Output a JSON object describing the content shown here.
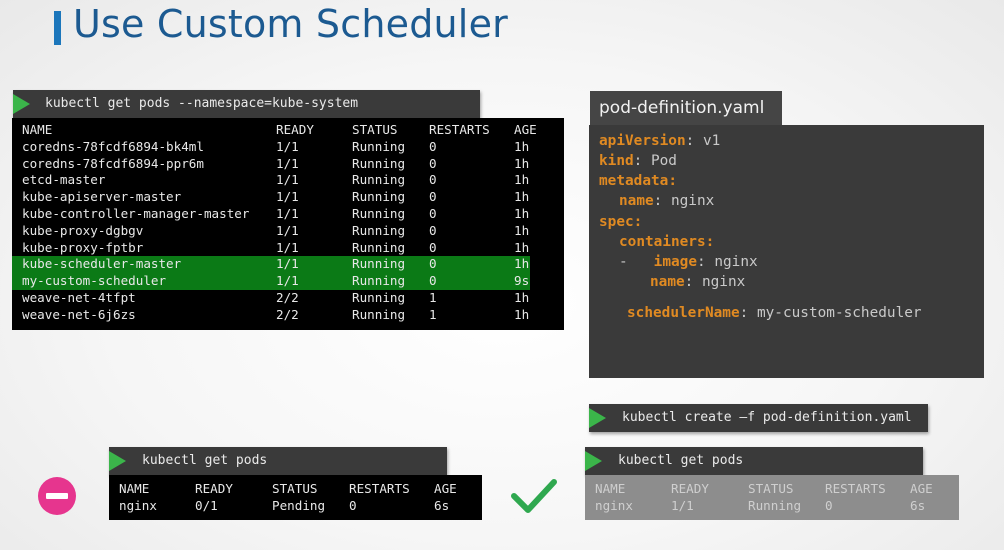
{
  "title": "Use Custom Scheduler",
  "top_command": "kubectl get pods --namespace=kube-system",
  "system_pods": {
    "headers": [
      "NAME",
      "READY",
      "STATUS",
      "RESTARTS",
      "AGE"
    ],
    "rows": [
      [
        "coredns-78fcdf6894-bk4ml",
        "1/1",
        "Running",
        "0",
        "1h"
      ],
      [
        "coredns-78fcdf6894-ppr6m",
        "1/1",
        "Running",
        "0",
        "1h"
      ],
      [
        "etcd-master",
        "1/1",
        "Running",
        "0",
        "1h"
      ],
      [
        "kube-apiserver-master",
        "1/1",
        "Running",
        "0",
        "1h"
      ],
      [
        "kube-controller-manager-master",
        "1/1",
        "Running",
        "0",
        "1h"
      ],
      [
        "kube-proxy-dgbgv",
        "1/1",
        "Running",
        "0",
        "1h"
      ],
      [
        "kube-proxy-fptbr",
        "1/1",
        "Running",
        "0",
        "1h"
      ],
      [
        "kube-scheduler-master",
        "1/1",
        "Running",
        "0",
        "1h"
      ],
      [
        "my-custom-scheduler",
        "1/1",
        "Running",
        "0",
        "9s"
      ],
      [
        "weave-net-4tfpt",
        "2/2",
        "Running",
        "1",
        "1h"
      ],
      [
        "weave-net-6j6zs",
        "2/2",
        "Running",
        "1",
        "1h"
      ]
    ],
    "highlighted_rows": [
      7,
      8
    ],
    "highlight_color": "#0b7a16"
  },
  "yaml": {
    "filename": "pod-definition.yaml",
    "apiVersion_key": "apiVersion",
    "apiVersion_val": "v1",
    "kind_key": "kind",
    "kind_val": "Pod",
    "metadata_key": "metadata",
    "name_key": "name",
    "metadata_name_val": "nginx",
    "spec_key": "spec",
    "containers_key": "containers",
    "dash": "-",
    "image_key": "image",
    "image_val": "nginx",
    "container_name_val": "nginx",
    "schedulerName_key": "schedulerName",
    "schedulerName_val": "my-custom-scheduler",
    "key_color": "#e08a22"
  },
  "create_command": "kubectl create –f pod-definition.yaml",
  "left_get_pods": {
    "command": "kubectl get pods",
    "headers": [
      "NAME",
      "READY",
      "STATUS",
      "RESTARTS",
      "AGE"
    ],
    "row": [
      "nginx",
      "0/1",
      "Pending",
      "0",
      "6s"
    ],
    "indicator": "stop-icon",
    "indicator_color": "#e6358e"
  },
  "right_get_pods": {
    "command": "kubectl get pods",
    "headers": [
      "NAME",
      "READY",
      "STATUS",
      "RESTARTS",
      "AGE"
    ],
    "row": [
      "nginx",
      "1/1",
      "Running",
      "0",
      "6s"
    ],
    "indicator": "checkmark-icon",
    "indicator_color": "#2fa84f"
  },
  "accent_green": "#3bb54a"
}
